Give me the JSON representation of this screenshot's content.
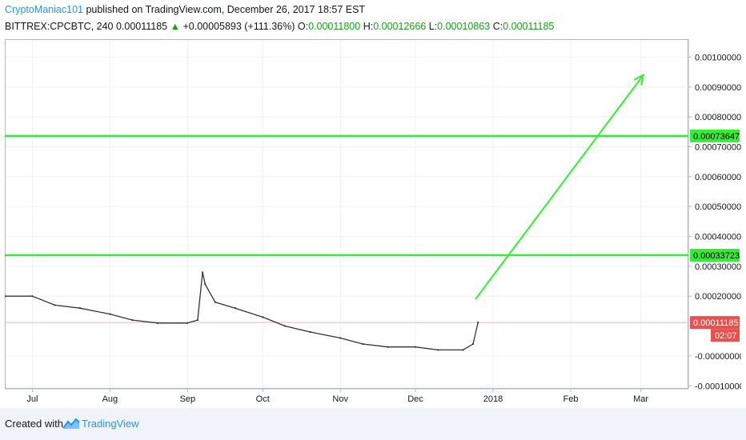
{
  "header": {
    "author": "CryptoManiac101",
    "published": "published on TradingView.com, December 26, 2017 18:57 EST"
  },
  "quote": {
    "symbol": "BITTREX:CPCBTC, 240",
    "last": "0.00011185",
    "change_arrow": "▲",
    "change": "+0.00005893 (+111.36%)",
    "o_label": "O:",
    "o_value": "0.00011800",
    "h_label": "H:",
    "h_value": "0.00012666",
    "l_label": "L:",
    "l_value": "0.00010863",
    "c_label": "C:",
    "c_value": "0.00011185"
  },
  "chart_data": {
    "type": "line",
    "x_ticks": [
      "Jul",
      "Aug",
      "Sep",
      "Oct",
      "Nov",
      "Dec",
      "2018",
      "Feb",
      "Mar"
    ],
    "y_ticks": [
      "0.00100000",
      "0.00090000",
      "0.00080000",
      "0.00070000",
      "0.00060000",
      "0.00050000",
      "0.00040000",
      "0.00030000",
      "0.00020000",
      "-0.00000000",
      "-0.00010000"
    ],
    "y_tick_values": [
      0.001,
      0.0009,
      0.0008,
      0.0007,
      0.0006,
      0.0005,
      0.0004,
      0.0003,
      0.0002,
      0,
      -0.0001
    ],
    "ylim": [
      -0.00011,
      0.00106
    ],
    "xlim": [
      "2017-06-20",
      "2018-03-20"
    ],
    "series": [
      {
        "x": [
          "2017-06-20",
          "2017-07-01",
          "2017-07-10",
          "2017-07-20",
          "2017-08-01",
          "2017-08-10",
          "2017-08-20",
          "2017-09-01",
          "2017-09-05",
          "2017-09-07",
          "2017-09-08",
          "2017-09-12",
          "2017-09-20",
          "2017-10-01",
          "2017-10-10",
          "2017-10-20",
          "2017-11-01",
          "2017-11-10",
          "2017-11-20",
          "2017-12-01",
          "2017-12-10",
          "2017-12-20",
          "2017-12-24",
          "2017-12-26"
        ],
        "y": [
          0.0002,
          0.0002,
          0.00017,
          0.00016,
          0.00014,
          0.00012,
          0.00011,
          0.00011,
          0.00012,
          0.00028,
          0.00024,
          0.00018,
          0.00016,
          0.00013,
          0.0001,
          8e-05,
          6e-05,
          4e-05,
          3e-05,
          3e-05,
          2e-05,
          2e-05,
          4e-05,
          0.00011185
        ]
      }
    ],
    "levels": [
      {
        "label": "0.00073647",
        "value": 0.00073647,
        "color": "#33ee33"
      },
      {
        "label": "0.00033723",
        "value": 0.00033723,
        "color": "#33ee33"
      }
    ],
    "last_price": {
      "label": "0.00011185",
      "value": 0.00011185,
      "color": "#e9504e",
      "countdown": "02:07"
    },
    "arrow": {
      "from": [
        "2017-12-25",
        0.00019
      ],
      "to": [
        "2018-03-02",
        0.00094
      ],
      "color": "#33ee33"
    },
    "grid": true
  },
  "footer": {
    "created_with": "Created with",
    "brand": "TradingView"
  },
  "colors": {
    "accent": "#2196f3",
    "level_green": "#33ee33",
    "last_price_red": "#e9504e",
    "price_line": "#333333"
  }
}
